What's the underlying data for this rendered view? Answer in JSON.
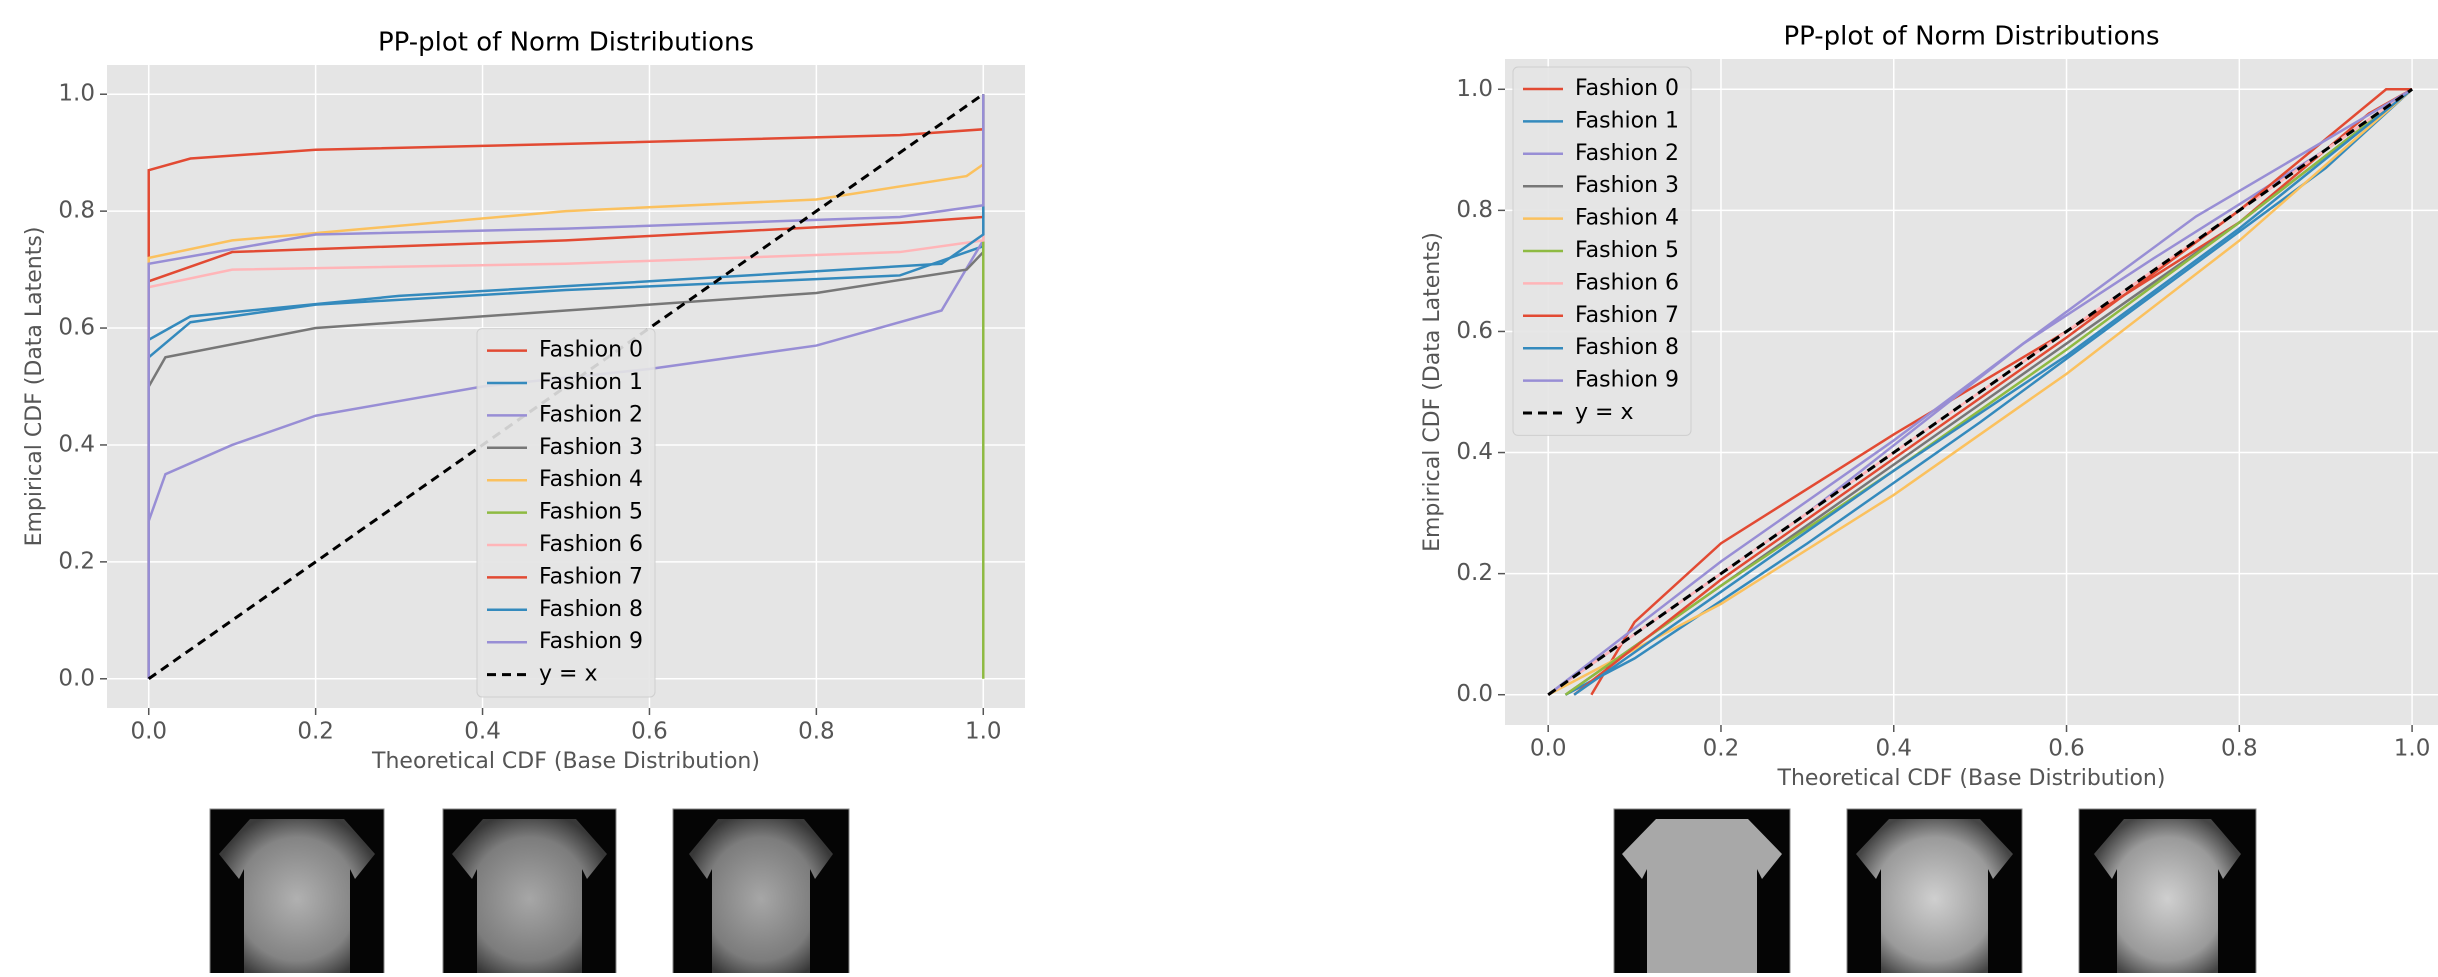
{
  "chart_data": [
    {
      "type": "line",
      "title": "PP-plot of Norm Distributions",
      "xlabel": "Theoretical CDF (Base Distribution)",
      "ylabel": "Empirical CDF (Data Latents)",
      "xlim": [
        -0.05,
        1.05
      ],
      "ylim": [
        -0.05,
        1.05
      ],
      "xticks": [
        {
          "value": 0,
          "label": "0.0"
        },
        0.2,
        0.4,
        0.6,
        0.8,
        {
          "value": 1,
          "label": "1.0"
        }
      ],
      "yticks": [
        {
          "value": 0,
          "label": "0.0"
        },
        0.2,
        0.4,
        0.6,
        0.8,
        {
          "value": 1,
          "label": "1.0"
        }
      ],
      "grid": true,
      "legend": "lower center",
      "series": [
        {
          "name": "Fashion 0",
          "color": "#E24A33",
          "x": [
            0,
            0,
            0.05,
            0.2,
            0.5,
            0.9,
            1,
            1
          ],
          "values": [
            0,
            0.87,
            0.89,
            0.905,
            0.915,
            0.93,
            0.94,
            1
          ]
        },
        {
          "name": "Fashion 1",
          "color": "#348ABD",
          "x": [
            0,
            0,
            0.05,
            0.2,
            0.5,
            0.9,
            1,
            1
          ],
          "values": [
            0,
            0.55,
            0.61,
            0.64,
            0.665,
            0.69,
            0.74,
            1
          ]
        },
        {
          "name": "Fashion 2",
          "color": "#988ED5",
          "x": [
            0,
            0,
            0.02,
            0.1,
            0.2,
            0.4,
            0.6,
            0.8,
            0.95,
            1,
            1
          ],
          "values": [
            0,
            0.27,
            0.35,
            0.4,
            0.45,
            0.5,
            0.53,
            0.57,
            0.63,
            0.75,
            1
          ]
        },
        {
          "name": "Fashion 3",
          "color": "#777777",
          "x": [
            0,
            0,
            0.02,
            0.2,
            0.5,
            0.8,
            0.98,
            1,
            1
          ],
          "values": [
            0,
            0.5,
            0.55,
            0.6,
            0.63,
            0.66,
            0.7,
            0.73,
            1
          ]
        },
        {
          "name": "Fashion 4",
          "color": "#FBC15E",
          "x": [
            0,
            0,
            0.1,
            0.5,
            0.8,
            0.98,
            1,
            1
          ],
          "values": [
            0,
            0.72,
            0.75,
            0.8,
            0.82,
            0.86,
            0.88,
            1
          ]
        },
        {
          "name": "Fashion 5",
          "color": "#8EBA42",
          "x": [
            1,
            1
          ],
          "values": [
            0,
            1
          ]
        },
        {
          "name": "Fashion 6",
          "color": "#FFB5B8",
          "x": [
            0,
            0,
            0.1,
            0.5,
            0.9,
            1,
            1
          ],
          "values": [
            0,
            0.67,
            0.7,
            0.71,
            0.73,
            0.75,
            1
          ]
        },
        {
          "name": "Fashion 7",
          "color": "#E24A33",
          "x": [
            0,
            0,
            0.1,
            0.5,
            0.9,
            1,
            1
          ],
          "values": [
            0,
            0.68,
            0.73,
            0.75,
            0.78,
            0.79,
            1
          ]
        },
        {
          "name": "Fashion 8",
          "color": "#348ABD",
          "x": [
            0,
            0,
            0.05,
            0.3,
            0.6,
            0.95,
            1,
            1
          ],
          "values": [
            0,
            0.58,
            0.62,
            0.655,
            0.68,
            0.71,
            0.76,
            1
          ]
        },
        {
          "name": "Fashion 9",
          "color": "#988ED5",
          "x": [
            0,
            0,
            0.2,
            0.5,
            0.9,
            1,
            1
          ],
          "values": [
            0,
            0.71,
            0.76,
            0.77,
            0.79,
            0.81,
            1
          ]
        },
        {
          "name": "y = x",
          "color": "#000000",
          "dash": true,
          "x": [
            0,
            1
          ],
          "values": [
            0,
            1
          ]
        }
      ]
    },
    {
      "type": "line",
      "title": "PP-plot of Norm Distributions",
      "xlabel": "Theoretical CDF (Base Distribution)",
      "ylabel": "Empirical CDF (Data Latents)",
      "xlim": [
        -0.05,
        1.03
      ],
      "ylim": [
        -0.05,
        1.05
      ],
      "xticks": [
        {
          "value": 0,
          "label": "0.0"
        },
        0.2,
        0.4,
        0.6,
        0.8,
        {
          "value": 1,
          "label": "1.0"
        }
      ],
      "yticks": [
        {
          "value": 0,
          "label": "0.0"
        },
        0.2,
        0.4,
        0.6,
        0.8,
        {
          "value": 1,
          "label": "1.0"
        }
      ],
      "grid": true,
      "legend": "upper left",
      "series": [
        {
          "name": "Fashion 0",
          "color": "#E24A33",
          "x": [
            0.05,
            0.1,
            0.2,
            0.4,
            0.6,
            0.8,
            0.95,
            1
          ],
          "values": [
            0,
            0.12,
            0.25,
            0.43,
            0.6,
            0.78,
            0.96,
            1
          ]
        },
        {
          "name": "Fashion 1",
          "color": "#348ABD",
          "x": [
            0.02,
            0.1,
            0.3,
            0.5,
            0.7,
            0.9,
            1
          ],
          "values": [
            0,
            0.06,
            0.25,
            0.45,
            0.66,
            0.87,
            1
          ]
        },
        {
          "name": "Fashion 2",
          "color": "#988ED5",
          "x": [
            0,
            0.1,
            0.3,
            0.55,
            0.7,
            0.9,
            1
          ],
          "values": [
            0,
            0.1,
            0.3,
            0.58,
            0.72,
            0.9,
            1
          ]
        },
        {
          "name": "Fashion 3",
          "color": "#777777",
          "x": [
            0.02,
            0.2,
            0.4,
            0.6,
            0.8,
            1
          ],
          "values": [
            0,
            0.18,
            0.38,
            0.58,
            0.78,
            1
          ]
        },
        {
          "name": "Fashion 4",
          "color": "#FBC15E",
          "x": [
            0,
            0.2,
            0.4,
            0.6,
            0.8,
            1
          ],
          "values": [
            0,
            0.15,
            0.33,
            0.53,
            0.75,
            1
          ]
        },
        {
          "name": "Fashion 5",
          "color": "#8EBA42",
          "x": [
            0.02,
            0.2,
            0.4,
            0.6,
            0.8,
            1
          ],
          "values": [
            0,
            0.18,
            0.37,
            0.57,
            0.78,
            1
          ]
        },
        {
          "name": "Fashion 6",
          "color": "#FFB5B8",
          "x": [
            0,
            0.2,
            0.4,
            0.6,
            0.8,
            1
          ],
          "values": [
            0,
            0.2,
            0.4,
            0.6,
            0.8,
            1
          ]
        },
        {
          "name": "Fashion 7",
          "color": "#E24A33",
          "x": [
            0.03,
            0.2,
            0.4,
            0.6,
            0.8,
            0.97,
            1
          ],
          "values": [
            0,
            0.19,
            0.39,
            0.59,
            0.8,
            1,
            1
          ]
        },
        {
          "name": "Fashion 8",
          "color": "#348ABD",
          "x": [
            0.03,
            0.2,
            0.4,
            0.6,
            0.8,
            1
          ],
          "values": [
            0,
            0.17,
            0.37,
            0.56,
            0.77,
            1
          ]
        },
        {
          "name": "Fashion 9",
          "color": "#988ED5",
          "x": [
            0,
            0.2,
            0.4,
            0.55,
            0.75,
            1
          ],
          "values": [
            0,
            0.22,
            0.42,
            0.58,
            0.79,
            1
          ]
        },
        {
          "name": "y = x",
          "color": "#000000",
          "dash": true,
          "x": [
            0,
            1
          ],
          "values": [
            0,
            1
          ]
        }
      ]
    }
  ]
}
